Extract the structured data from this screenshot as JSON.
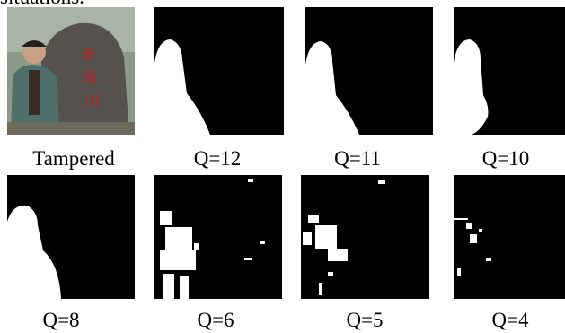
{
  "top_text": "situations.",
  "panels": [
    {
      "label": "Tampered"
    },
    {
      "label": "Q=12"
    },
    {
      "label": "Q=11"
    },
    {
      "label": "Q=10"
    },
    {
      "label": "Q=8"
    },
    {
      "label": "Q=6"
    },
    {
      "label": "Q=5"
    },
    {
      "label": "Q=4"
    }
  ]
}
